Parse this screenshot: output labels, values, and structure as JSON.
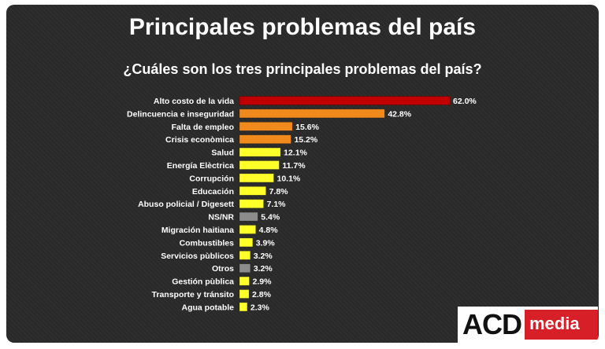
{
  "header": {
    "title": "Principales problemas del país",
    "subtitle": "¿Cuáles son los tres principales problemas del país?"
  },
  "logo": {
    "main": "ACD",
    "sub": "media"
  },
  "chart_data": {
    "type": "bar",
    "orientation": "horizontal",
    "title": "Principales problemas del país",
    "subtitle": "¿Cuáles son los tres principales problemas del país?",
    "xlim": [
      0,
      62
    ],
    "categories": [
      "Alto costo de la vida",
      "Delincuencia e inseguridad",
      "Falta de empleo",
      "Crisis econòmica",
      "Salud",
      "Energía Elèctrica",
      "Corrupción",
      "Educación",
      "Abuso policial / Digesett",
      "NS/NR",
      "Migración haitiana",
      "Combustibles",
      "Servicios pùblicos",
      "Otros",
      "Gestión pùblica",
      "Transporte y tránsito",
      "Agua potable"
    ],
    "values": [
      62.0,
      42.8,
      15.6,
      15.2,
      12.1,
      11.7,
      10.1,
      7.8,
      7.1,
      5.4,
      4.8,
      3.9,
      3.2,
      3.2,
      2.9,
      2.8,
      2.3
    ],
    "value_labels": [
      "62.0%",
      "42.8%",
      "15.6%",
      "15.2%",
      "12.1%",
      "11.7%",
      "10.1%",
      "7.8%",
      "7.1%",
      "5.4%",
      "4.8%",
      "3.9%",
      "3.2%",
      "3.2%",
      "2.9%",
      "2.8%",
      "2.3%"
    ],
    "colors": [
      "#c00000",
      "#f08a1c",
      "#f08a1c",
      "#f08a1c",
      "#ffff2a",
      "#ffff2a",
      "#ffff2a",
      "#ffff2a",
      "#ffff2a",
      "#8c8c8c",
      "#ffff2a",
      "#ffff2a",
      "#ffff2a",
      "#8c8c8c",
      "#ffff2a",
      "#ffff2a",
      "#ffff2a"
    ],
    "grid": false,
    "legend": "none"
  }
}
